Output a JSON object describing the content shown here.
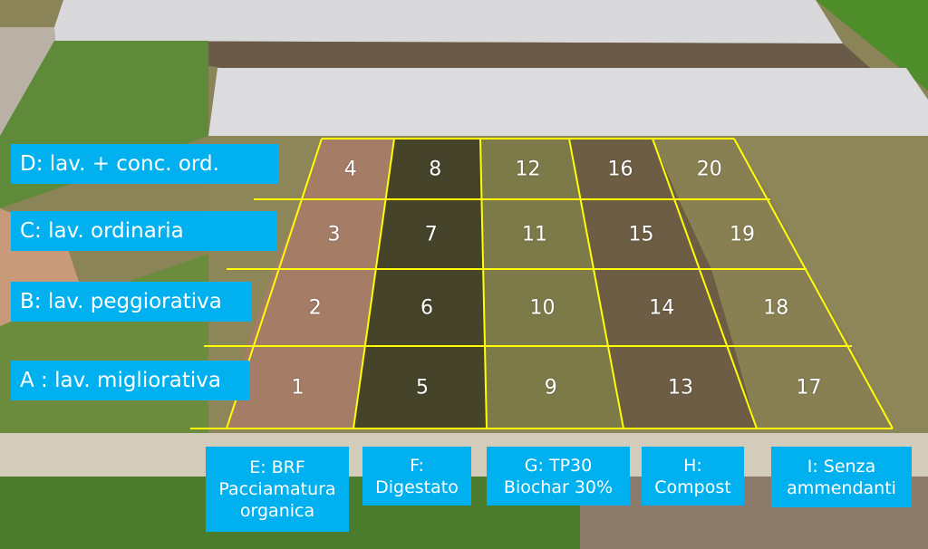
{
  "row_labels": [
    {
      "id": "D",
      "label": "D: lav. + conc. ord."
    },
    {
      "id": "C",
      "label": "C: lav. ordinaria"
    },
    {
      "id": "B",
      "label": "B: lav. peggiorativa"
    },
    {
      "id": "A",
      "label": "A : lav. migliorativa"
    }
  ],
  "column_labels": [
    {
      "id": "E",
      "line1": "E: BRF",
      "line2": "Pacciamatura",
      "line3": "organica"
    },
    {
      "id": "F",
      "line1": "F:",
      "line2": "Digestato"
    },
    {
      "id": "G",
      "line1": "G: TP30",
      "line2": "Biochar 30%"
    },
    {
      "id": "H",
      "line1": "H:",
      "line2": "Compost"
    },
    {
      "id": "I",
      "line1": "I: Senza",
      "line2": "ammendanti"
    }
  ],
  "plots": [
    [
      "4",
      "8",
      "12",
      "16",
      "20"
    ],
    [
      "3",
      "7",
      "11",
      "15",
      "19"
    ],
    [
      "2",
      "6",
      "10",
      "14",
      "18"
    ],
    [
      "1",
      "5",
      "9",
      "13",
      "17"
    ]
  ],
  "colors": {
    "label_bg": "#00b0ef",
    "label_text": "#ffffff",
    "grid_line": "#ffff00"
  }
}
